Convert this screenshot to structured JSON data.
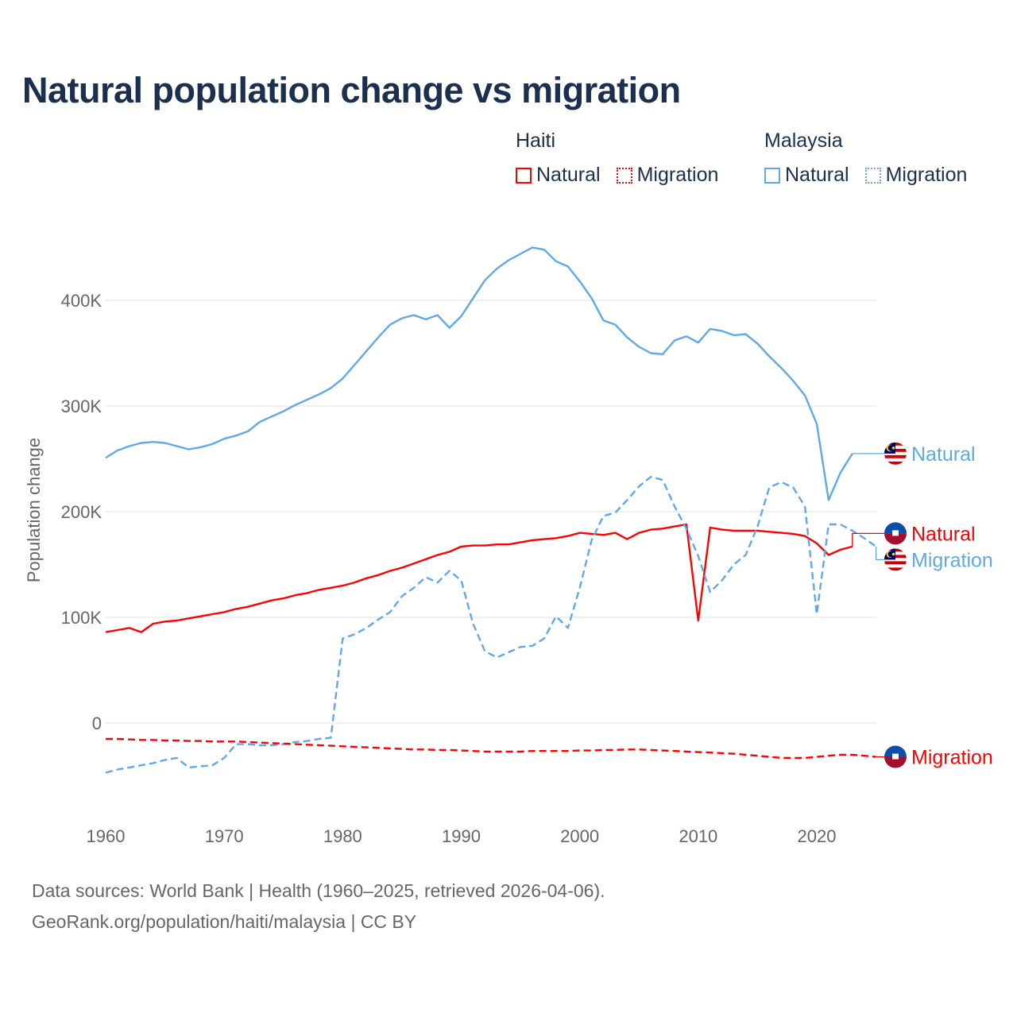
{
  "title": "Natural population change vs migration",
  "legend": {
    "groups": [
      {
        "name": "Haiti",
        "color": "#ff0000",
        "items": [
          "Natural",
          "Migration"
        ]
      },
      {
        "name": "Malaysia",
        "color": "#5fa8ea",
        "items": [
          "Natural",
          "Migration"
        ]
      }
    ]
  },
  "footer": {
    "line1": "Data sources: World Bank | Health (1960–2025, retrieved 2026-04-06).",
    "line2": "GeoRank.org/population/haiti/malaysia | CC BY"
  },
  "chart_data": {
    "type": "line",
    "title": "Natural population change vs migration",
    "xlabel": "",
    "ylabel": "Population change",
    "xlim": [
      1960,
      2025
    ],
    "ylim": [
      -80000,
      470000
    ],
    "x_ticks": [
      1960,
      1970,
      1980,
      1990,
      2000,
      2010,
      2020
    ],
    "y_ticks": [
      0,
      100000,
      200000,
      300000,
      400000
    ],
    "y_tick_labels": [
      "0",
      "100K",
      "200K",
      "300K",
      "400K"
    ],
    "grid": "horizontal",
    "legend_position": "top-right",
    "series": [
      {
        "name": "Malaysia Natural",
        "label": "Natural",
        "country": "Malaysia",
        "color": "#5fa8ea",
        "dash": false,
        "start_year": 1960,
        "values": [
          251,
          258,
          262,
          265,
          266,
          265,
          262,
          259,
          261,
          264,
          269,
          272,
          276,
          285,
          290,
          295,
          301,
          306,
          311,
          317,
          326,
          339,
          352,
          365,
          377,
          383,
          386,
          382,
          386,
          374,
          385,
          402,
          419,
          430,
          438,
          444,
          450,
          448,
          437,
          432,
          418,
          402,
          381,
          377,
          365,
          356,
          350,
          349,
          362,
          366,
          360,
          373,
          371,
          367,
          368,
          359,
          347,
          336,
          324,
          310,
          283,
          211,
          237,
          255
        ]
      },
      {
        "name": "Haiti Natural",
        "label": "Natural",
        "country": "Haiti",
        "color": "#ff0000",
        "dash": false,
        "start_year": 1960,
        "values": [
          86,
          88,
          90,
          86,
          94,
          96,
          97,
          99,
          101,
          103,
          105,
          108,
          110,
          113,
          116,
          118,
          121,
          123,
          126,
          128,
          130,
          133,
          137,
          140,
          144,
          147,
          151,
          155,
          159,
          162,
          167,
          168,
          168,
          169,
          169,
          171,
          173,
          174,
          175,
          177,
          180,
          179,
          178,
          180,
          174,
          180,
          183,
          184,
          186,
          188,
          97,
          185,
          183,
          182,
          182,
          182,
          181,
          180,
          179,
          177,
          170,
          159,
          164,
          167
        ]
      },
      {
        "name": "Malaysia Migration",
        "label": "Migration",
        "country": "Malaysia",
        "color": "#5fa8ea",
        "dash": true,
        "start_year": 1960,
        "values": [
          -47,
          -44,
          -42,
          -40,
          -38,
          -35,
          -33,
          -42,
          -41,
          -40,
          -33,
          -20,
          -20,
          -21,
          -21,
          -20,
          -18,
          -17,
          -15,
          -14,
          80,
          84,
          90,
          98,
          105,
          120,
          128,
          138,
          133,
          144,
          135,
          94,
          68,
          62,
          67,
          72,
          73,
          80,
          101,
          90,
          128,
          173,
          196,
          199,
          211,
          224,
          233,
          230,
          205,
          184,
          158,
          124,
          135,
          150,
          159,
          186,
          223,
          228,
          223,
          205,
          103,
          188,
          188,
          182,
          175,
          167
        ]
      },
      {
        "name": "Haiti Migration",
        "label": "Migration",
        "country": "Haiti",
        "color": "#ff0000",
        "dash": true,
        "start_year": 1960,
        "values": [
          -15,
          -15,
          -15.5,
          -16,
          -16,
          -16.5,
          -16.5,
          -17,
          -17,
          -17.5,
          -17.5,
          -17.5,
          -18,
          -18.5,
          -19,
          -19.5,
          -20,
          -20.5,
          -21,
          -21.5,
          -22,
          -22.5,
          -23,
          -23.5,
          -24,
          -24.5,
          -25,
          -25,
          -25.5,
          -25.5,
          -26,
          -26.5,
          -27,
          -27,
          -27,
          -27,
          -26.5,
          -26.5,
          -26.5,
          -26.5,
          -26,
          -26,
          -25.5,
          -25.5,
          -25,
          -25,
          -25.5,
          -26,
          -26.5,
          -27,
          -27.5,
          -28,
          -28.5,
          -29,
          -30,
          -31,
          -32,
          -33,
          -33,
          -33,
          -32,
          -31,
          -30,
          -30,
          -31,
          -32
        ]
      }
    ],
    "value_unit": "thousands"
  }
}
